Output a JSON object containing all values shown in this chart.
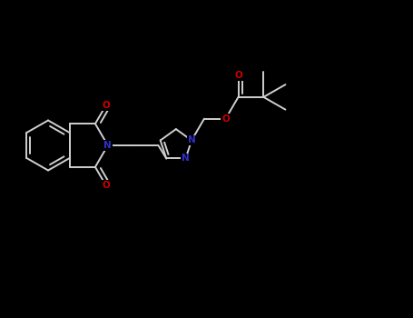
{
  "background_color": "#000000",
  "bond_color": "#d0d0d0",
  "N_color": "#3030cc",
  "O_color": "#cc0000",
  "figsize": [
    4.55,
    3.5
  ],
  "dpi": 100,
  "xlim": [
    0,
    9
  ],
  "ylim": [
    0,
    7
  ],
  "lw": 1.4,
  "fontsize": 7.5
}
